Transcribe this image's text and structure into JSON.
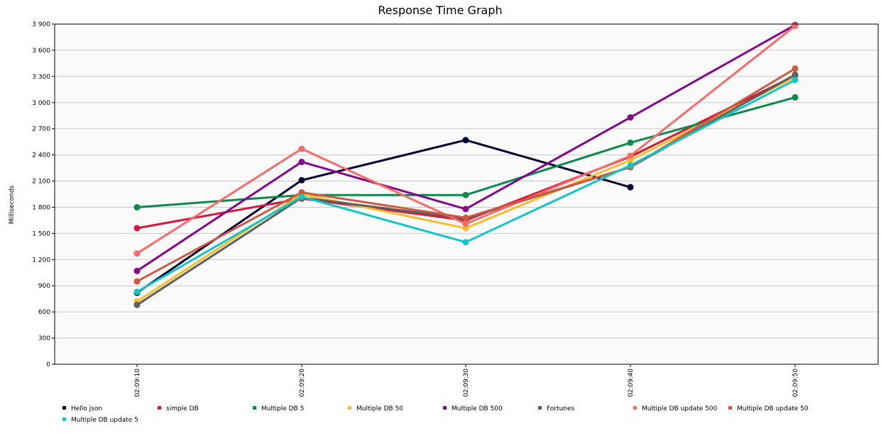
{
  "chart_data": {
    "type": "line",
    "title": "Response Time Graph",
    "ylabel": "Milliseconds",
    "xlabel": "",
    "ylim": [
      0,
      3900
    ],
    "y_ticks": [
      0,
      300,
      600,
      900,
      1200,
      1500,
      1800,
      2100,
      2400,
      2700,
      3000,
      3300,
      3600,
      3900
    ],
    "y_tick_labels": [
      "0",
      "300",
      "600",
      "900",
      "1 200",
      "1 500",
      "1 800",
      "2 100",
      "2 400",
      "2 700",
      "3 000",
      "3 300",
      "3 600",
      "3 900"
    ],
    "categories": [
      "02:09:10",
      "02:09:20",
      "02:09:30",
      "02:09:40",
      "02:09:50"
    ],
    "grid": true,
    "legend_position": "bottom",
    "series": [
      {
        "name": "Hello json",
        "color": "#000033",
        "values": [
          820,
          2110,
          2570,
          2030,
          null
        ]
      },
      {
        "name": "simple DB",
        "color": "#d8163a",
        "values": [
          1560,
          1900,
          1650,
          2380,
          3310
        ]
      },
      {
        "name": "Multiple DB 5",
        "color": "#0b8a4c",
        "values": [
          1800,
          1940,
          1940,
          2540,
          3060
        ]
      },
      {
        "name": "Multiple DB 50",
        "color": "#f6be2a",
        "values": [
          720,
          1950,
          1560,
          2340,
          3290
        ]
      },
      {
        "name": "Multiple DB 500",
        "color": "#86078c",
        "values": [
          1070,
          2320,
          1780,
          2830,
          3890
        ]
      },
      {
        "name": "Fortunes",
        "color": "#5e5e5e",
        "values": [
          680,
          1910,
          1670,
          2260,
          3320
        ]
      },
      {
        "name": "Multiple DB update 500",
        "color": "#f86b6b",
        "values": [
          1270,
          2470,
          1610,
          2390,
          3880
        ]
      },
      {
        "name": "Multiple DB update 50",
        "color": "#cf5940",
        "values": [
          950,
          1970,
          1680,
          2260,
          3390
        ]
      },
      {
        "name": "Multiple DB update 5",
        "color": "#11c6c7",
        "values": [
          830,
          1920,
          1400,
          2280,
          3260
        ]
      }
    ]
  }
}
